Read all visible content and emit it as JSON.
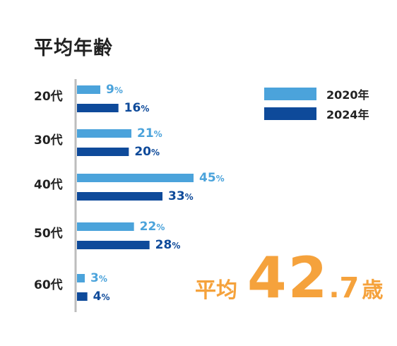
{
  "title": "平均年齢",
  "chart_data": {
    "type": "bar",
    "orientation": "horizontal",
    "categories": [
      "20代",
      "30代",
      "40代",
      "50代",
      "60代"
    ],
    "series": [
      {
        "name": "2020年",
        "values": [
          9,
          21,
          45,
          22,
          3
        ],
        "color": "#4BA3DB"
      },
      {
        "name": "2024年",
        "values": [
          16,
          20,
          33,
          28,
          4
        ],
        "color": "#0E4A9A"
      }
    ],
    "value_suffix": "%",
    "xlim": [
      0,
      45
    ],
    "legend": "top-right"
  },
  "average": {
    "label": "平均",
    "integer": "42",
    "dot": ".",
    "decimal": "7",
    "unit": "歳",
    "color": "#F5A23C"
  }
}
